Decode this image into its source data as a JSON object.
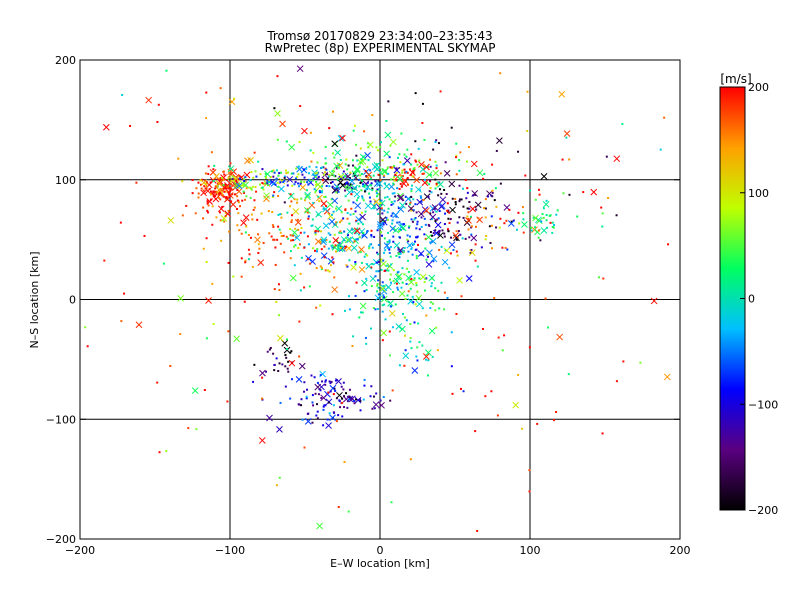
{
  "chart_data": {
    "type": "scatter",
    "title": "Tromsø 20170829 23:34:00–23:35:43",
    "subtitle": "RwPretec (8p) EXPERIMENTAL SKYMAP",
    "xlabel": "E–W location [km]",
    "ylabel": "N–S location [km]",
    "xlim": [
      -200,
      200
    ],
    "ylim": [
      -200,
      200
    ],
    "x_ticks": [
      -200,
      -100,
      0,
      100,
      200
    ],
    "y_ticks": [
      -200,
      -100,
      0,
      100,
      200
    ],
    "x_tick_labels": [
      "−200",
      "−100",
      "0",
      "100",
      "200"
    ],
    "y_tick_labels": [
      "−200",
      "−100",
      "0",
      "100",
      "200"
    ],
    "grid": true,
    "colorbar": {
      "label": "[m/s]",
      "range": [
        -200,
        200
      ],
      "ticks": [
        -200,
        -100,
        0,
        100,
        200
      ],
      "tick_labels": [
        "−200",
        "−100",
        "0",
        "100",
        "200"
      ],
      "colormap": [
        "#000000",
        "#5a0080",
        "#0000ff",
        "#00c0ff",
        "#00ff60",
        "#c0ff00",
        "#ffa000",
        "#ff0000"
      ]
    },
    "markers": [
      "x (larger echoes)",
      "dot (smaller echoes)"
    ],
    "clusters": [
      {
        "x": -105,
        "y": 92,
        "sx": 9,
        "sy": 9,
        "v": 190,
        "n": 160
      },
      {
        "x": -70,
        "y": 65,
        "sx": 28,
        "sy": 22,
        "v": 160,
        "n": 120
      },
      {
        "x": -80,
        "y": 100,
        "sx": 15,
        "sy": 6,
        "v": 70,
        "n": 55
      },
      {
        "x": -45,
        "y": 100,
        "sx": 22,
        "sy": 6,
        "v": -70,
        "n": 85
      },
      {
        "x": -20,
        "y": 100,
        "sx": 10,
        "sy": 5,
        "v": -170,
        "n": 45
      },
      {
        "x": -5,
        "y": 110,
        "sx": 28,
        "sy": 14,
        "v": 40,
        "n": 160
      },
      {
        "x": 15,
        "y": 105,
        "sx": 8,
        "sy": 6,
        "v": 190,
        "n": 40
      },
      {
        "x": 10,
        "y": 60,
        "sx": 24,
        "sy": 25,
        "v": -60,
        "n": 230
      },
      {
        "x": -20,
        "y": 60,
        "sx": 22,
        "sy": 22,
        "v": 10,
        "n": 150
      },
      {
        "x": -40,
        "y": 45,
        "sx": 18,
        "sy": 18,
        "v": 160,
        "n": 60
      },
      {
        "x": 45,
        "y": 70,
        "sx": 18,
        "sy": 18,
        "v": -160,
        "n": 90
      },
      {
        "x": 60,
        "y": 75,
        "sx": 28,
        "sy": 18,
        "v": 170,
        "n": 60
      },
      {
        "x": 110,
        "y": 68,
        "sx": 12,
        "sy": 8,
        "v": 20,
        "n": 40
      },
      {
        "x": 15,
        "y": 10,
        "sx": 15,
        "sy": 20,
        "v": 30,
        "n": 90
      },
      {
        "x": 0,
        "y": 5,
        "sx": 8,
        "sy": 15,
        "v": -40,
        "n": 30
      },
      {
        "x": 20,
        "y": -40,
        "sx": 12,
        "sy": 15,
        "v": -20,
        "n": 25
      },
      {
        "x": -65,
        "y": -50,
        "sx": 8,
        "sy": 8,
        "v": -180,
        "n": 25
      },
      {
        "x": -45,
        "y": -75,
        "sx": 14,
        "sy": 10,
        "v": -110,
        "n": 55
      },
      {
        "x": -15,
        "y": -85,
        "sx": 8,
        "sy": 5,
        "v": -140,
        "n": 40
      },
      {
        "x": -40,
        "y": -95,
        "sx": 10,
        "sy": 6,
        "v": -110,
        "n": 25
      },
      {
        "x": 0,
        "y": 30,
        "sx": 130,
        "sy": 95,
        "v": 190,
        "n": 170
      },
      {
        "x": 0,
        "y": 20,
        "sx": 110,
        "sy": 100,
        "v": 60,
        "n": 60
      },
      {
        "x": 60,
        "y": 110,
        "sx": 70,
        "sy": 40,
        "v": -180,
        "n": 30
      }
    ]
  }
}
